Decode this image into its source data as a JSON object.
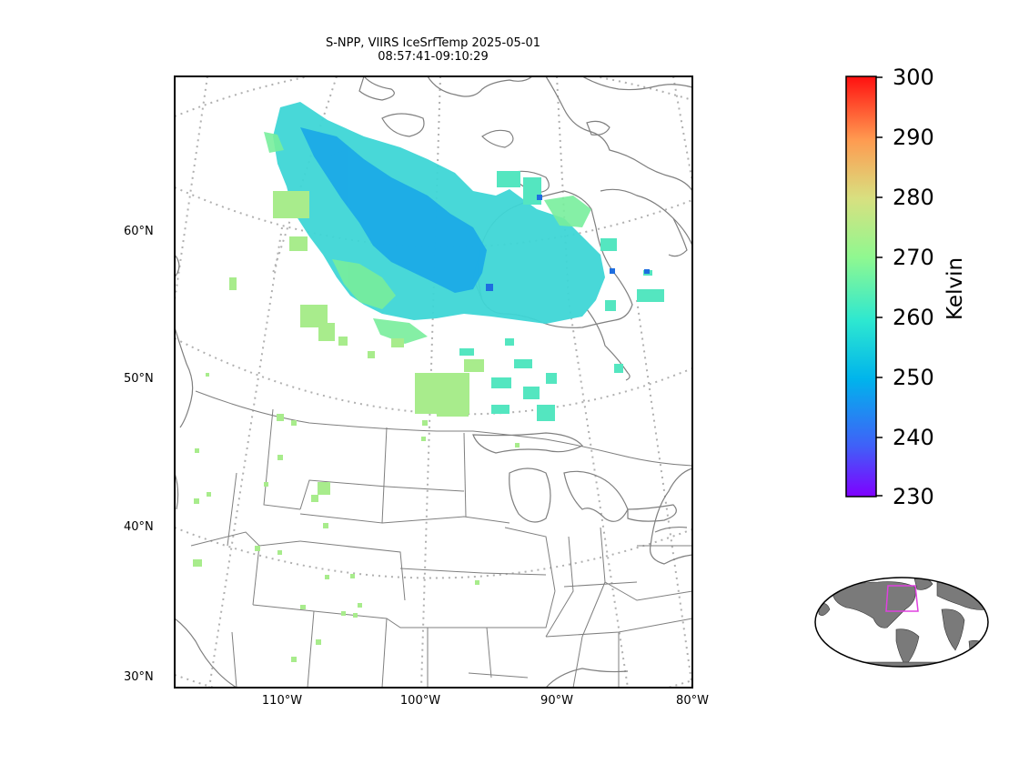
{
  "title": {
    "line1": "S-NPP, VIIRS IceSrfTemp 2025-05-01",
    "line2": "08:57:41-09:10:29"
  },
  "map": {
    "lat_labels": [
      "60°N",
      "50°N",
      "40°N",
      "30°N"
    ],
    "lon_labels": [
      "110°W",
      "100°W",
      "90°W",
      "80°W"
    ],
    "gridline_style": "dotted",
    "coastline_color": "#7f7f7f",
    "border_color": "#7f7f7f"
  },
  "colorbar": {
    "label": "Kelvin",
    "ticks": [
      "300",
      "290",
      "280",
      "270",
      "260",
      "250",
      "240",
      "230"
    ],
    "min": 230,
    "max": 300,
    "colormap": "rainbow"
  },
  "inset": {
    "description_icon": "globe-locator",
    "box_color": "#e040e0",
    "land_color": "#7a7a7a"
  }
}
